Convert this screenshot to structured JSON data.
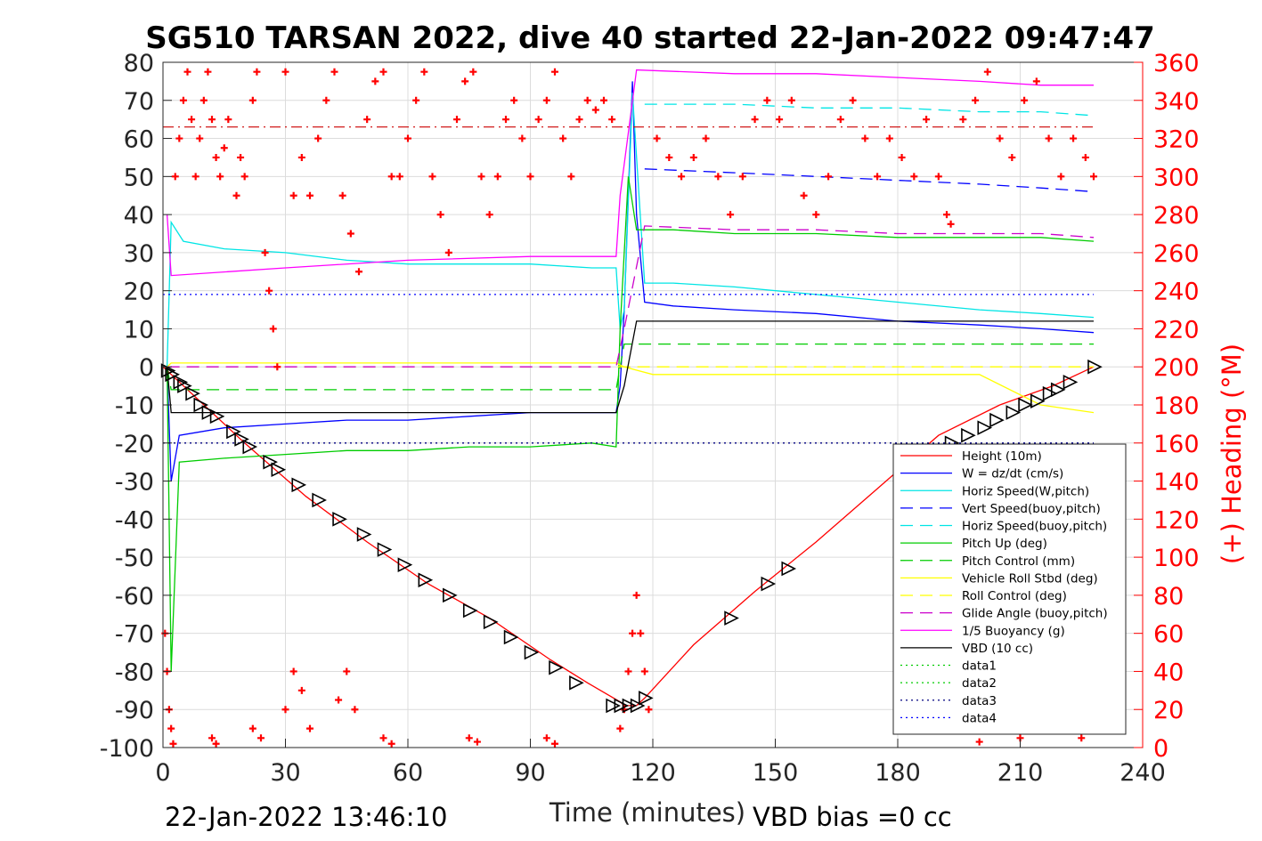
{
  "chart_data": {
    "type": "line",
    "title": "SG510 TARSAN 2022, dive 40 started 22-Jan-2022 09:47:47",
    "xlabel": "Time (minutes)",
    "ylabel": "",
    "y2label": "(+) Heading (°M)",
    "xlim": [
      0,
      240
    ],
    "ylim": [
      -100,
      80
    ],
    "y2lim": [
      0,
      360
    ],
    "xticks": [
      0,
      30,
      60,
      90,
      120,
      150,
      180,
      210,
      240
    ],
    "yticks": [
      -100,
      -90,
      -80,
      -70,
      -60,
      -50,
      -40,
      -30,
      -20,
      -10,
      0,
      10,
      20,
      30,
      40,
      50,
      60,
      70,
      80
    ],
    "y2ticks": [
      0,
      20,
      40,
      60,
      80,
      100,
      120,
      140,
      160,
      180,
      200,
      220,
      240,
      260,
      280,
      300,
      320,
      340,
      360
    ],
    "grid": true,
    "legend_position": "bottom-right",
    "footer_left": "22-Jan-2022 13:46:10",
    "footer_right": "VBD bias =0 cc",
    "series": [
      {
        "name": "Height (10m)",
        "color": "#ff0000",
        "style": "solid",
        "x": [
          0,
          8,
          20,
          35,
          50,
          65,
          80,
          95,
          104,
          112,
          113,
          116,
          118,
          130,
          145,
          160,
          175,
          190,
          205,
          218,
          228
        ],
        "y": [
          0,
          -8,
          -20,
          -34,
          -46,
          -57,
          -66,
          -77,
          -83,
          -88,
          -89,
          -89,
          -87,
          -73,
          -59,
          -46,
          -32,
          -18,
          -10,
          -5,
          0
        ]
      },
      {
        "name": "W = dz/dt (cm/s)",
        "color": "#0000ff",
        "style": "solid",
        "x": [
          1,
          2,
          4,
          15,
          30,
          45,
          60,
          75,
          90,
          105,
          111,
          112,
          113,
          115,
          116,
          118,
          125,
          140,
          160,
          180,
          200,
          215,
          228
        ],
        "y": [
          0,
          -30,
          -18,
          -16,
          -15,
          -14,
          -14,
          -13,
          -12,
          -12,
          -12,
          -5,
          15,
          75,
          40,
          17,
          16,
          15,
          14,
          12,
          11,
          10,
          9
        ]
      },
      {
        "name": "Horiz Speed(W,pitch)",
        "color": "#00e5e5",
        "style": "solid",
        "x": [
          1,
          2,
          5,
          15,
          30,
          45,
          60,
          75,
          90,
          105,
          111,
          112,
          113,
          115,
          118,
          125,
          140,
          160,
          180,
          200,
          215,
          228
        ],
        "y": [
          0,
          38,
          33,
          31,
          30,
          28,
          27,
          27,
          27,
          26,
          26,
          10,
          15,
          72,
          22,
          22,
          21,
          19,
          17,
          15,
          14,
          13
        ]
      },
      {
        "name": "Vert Speed(buoy,pitch)",
        "color": "#0000ff",
        "style": "dashed",
        "x": [
          118,
          140,
          160,
          180,
          200,
          215,
          228
        ],
        "y": [
          52,
          51,
          50,
          49,
          48,
          47,
          46
        ]
      },
      {
        "name": "Horiz Speed(buoy,pitch)",
        "color": "#00e5e5",
        "style": "dashed",
        "x": [
          118,
          140,
          160,
          180,
          200,
          215,
          228
        ],
        "y": [
          69,
          69,
          68,
          68,
          67,
          67,
          66
        ]
      },
      {
        "name": "Pitch Up (deg)",
        "color": "#00cc00",
        "style": "solid",
        "x": [
          1,
          2,
          4,
          15,
          30,
          45,
          60,
          75,
          90,
          105,
          111,
          112,
          114,
          116,
          118,
          125,
          140,
          160,
          180,
          200,
          215,
          228
        ],
        "y": [
          0,
          -80,
          -25,
          -24,
          -23,
          -22,
          -22,
          -21,
          -21,
          -20,
          -21,
          10,
          50,
          36,
          36,
          36,
          35,
          35,
          34,
          34,
          34,
          33
        ]
      },
      {
        "name": "Pitch Control (mm)",
        "color": "#00cc00",
        "style": "dashed",
        "x": [
          1,
          2,
          111,
          112,
          113,
          228
        ],
        "y": [
          0,
          -6,
          -6,
          0,
          6,
          6
        ]
      },
      {
        "name": "Vehicle Roll Stbd (deg)",
        "color": "#ffff00",
        "style": "solid",
        "x": [
          1,
          2,
          10,
          20,
          30,
          40,
          50,
          60,
          70,
          80,
          90,
          100,
          111,
          113,
          120,
          140,
          160,
          180,
          200,
          215,
          228
        ],
        "y": [
          0,
          1,
          1,
          1,
          1,
          1,
          1,
          1,
          1,
          1,
          1,
          1,
          1,
          0,
          -2,
          -2,
          -2,
          -2,
          -2,
          -10,
          -12
        ]
      },
      {
        "name": "Roll Control (deg)",
        "color": "#ffff00",
        "style": "dashed",
        "x": [
          1,
          228
        ],
        "y": [
          0,
          0
        ]
      },
      {
        "name": "Glide Angle (buoy,pitch)",
        "color": "#cc00cc",
        "style": "dashed",
        "x": [
          1,
          111,
          113,
          118,
          140,
          160,
          180,
          200,
          215,
          228
        ],
        "y": [
          0,
          0,
          10,
          37,
          36,
          36,
          35,
          35,
          35,
          34
        ]
      },
      {
        "name": "1/5 Buoyancy (g)",
        "color": "#ff00ff",
        "style": "solid",
        "x": [
          1,
          2,
          30,
          60,
          90,
          111,
          112,
          116,
          140,
          160,
          180,
          200,
          215,
          228
        ],
        "y": [
          40,
          24,
          26,
          28,
          29,
          29,
          45,
          78,
          77,
          77,
          76,
          75,
          74,
          74
        ]
      },
      {
        "name": "VBD (10 cc)",
        "color": "#000000",
        "style": "solid",
        "x": [
          1,
          2,
          111,
          113,
          116,
          228
        ],
        "y": [
          0,
          -12,
          -12,
          -5,
          12,
          12
        ]
      },
      {
        "name": "data1",
        "color": "#00cc00",
        "style": "dotted",
        "x": [],
        "y": []
      },
      {
        "name": "data2",
        "color": "#00cc00",
        "style": "dotted",
        "x": [],
        "y": []
      },
      {
        "name": "data3",
        "color": "#000080",
        "style": "dotted",
        "x": [
          0,
          228
        ],
        "y": [
          -20,
          -20
        ]
      },
      {
        "name": "data4",
        "color": "#0000ff",
        "style": "dotted",
        "x": [
          0,
          228
        ],
        "y": [
          19,
          19
        ]
      }
    ],
    "extra_lines": [
      {
        "color": "#cc0000",
        "style": "dashdot",
        "x": [
          0,
          228
        ],
        "y": [
          63,
          63
        ]
      }
    ],
    "heading_series": {
      "color": "#ff0000",
      "marker": "+",
      "axis": "right",
      "points": [
        [
          0.5,
          60
        ],
        [
          1,
          40
        ],
        [
          1.5,
          20
        ],
        [
          2,
          10
        ],
        [
          2.5,
          2
        ],
        [
          3,
          300
        ],
        [
          4,
          320
        ],
        [
          5,
          340
        ],
        [
          6,
          355
        ],
        [
          7,
          330
        ],
        [
          8,
          300
        ],
        [
          9,
          320
        ],
        [
          10,
          340
        ],
        [
          11,
          355
        ],
        [
          12,
          330
        ],
        [
          13,
          310
        ],
        [
          14,
          300
        ],
        [
          15,
          315
        ],
        [
          16,
          330
        ],
        [
          18,
          290
        ],
        [
          19,
          310
        ],
        [
          20,
          300
        ],
        [
          22,
          340
        ],
        [
          23,
          355
        ],
        [
          25,
          260
        ],
        [
          26,
          240
        ],
        [
          27,
          220
        ],
        [
          28,
          200
        ],
        [
          30,
          355
        ],
        [
          32,
          290
        ],
        [
          34,
          310
        ],
        [
          36,
          290
        ],
        [
          38,
          320
        ],
        [
          40,
          340
        ],
        [
          42,
          355
        ],
        [
          44,
          290
        ],
        [
          46,
          270
        ],
        [
          48,
          250
        ],
        [
          50,
          330
        ],
        [
          52,
          350
        ],
        [
          54,
          355
        ],
        [
          56,
          300
        ],
        [
          58,
          300
        ],
        [
          60,
          320
        ],
        [
          62,
          340
        ],
        [
          64,
          355
        ],
        [
          66,
          300
        ],
        [
          68,
          280
        ],
        [
          70,
          260
        ],
        [
          72,
          330
        ],
        [
          74,
          350
        ],
        [
          76,
          355
        ],
        [
          78,
          300
        ],
        [
          80,
          280
        ],
        [
          82,
          300
        ],
        [
          84,
          330
        ],
        [
          86,
          340
        ],
        [
          88,
          320
        ],
        [
          90,
          300
        ],
        [
          92,
          330
        ],
        [
          94,
          340
        ],
        [
          96,
          355
        ],
        [
          98,
          320
        ],
        [
          100,
          300
        ],
        [
          102,
          330
        ],
        [
          104,
          340
        ],
        [
          106,
          335
        ],
        [
          108,
          340
        ],
        [
          110,
          330
        ],
        [
          112,
          10
        ],
        [
          113,
          20
        ],
        [
          114,
          40
        ],
        [
          115,
          60
        ],
        [
          116,
          80
        ],
        [
          117,
          60
        ],
        [
          118,
          40
        ],
        [
          119,
          20
        ],
        [
          121,
          320
        ],
        [
          124,
          310
        ],
        [
          127,
          300
        ],
        [
          130,
          310
        ],
        [
          133,
          320
        ],
        [
          136,
          300
        ],
        [
          139,
          280
        ],
        [
          142,
          300
        ],
        [
          145,
          330
        ],
        [
          148,
          340
        ],
        [
          151,
          330
        ],
        [
          154,
          340
        ],
        [
          157,
          290
        ],
        [
          160,
          280
        ],
        [
          163,
          300
        ],
        [
          166,
          330
        ],
        [
          169,
          340
        ],
        [
          172,
          320
        ],
        [
          175,
          300
        ],
        [
          178,
          320
        ],
        [
          181,
          310
        ],
        [
          184,
          300
        ],
        [
          187,
          330
        ],
        [
          190,
          300
        ],
        [
          192,
          280
        ],
        [
          193,
          275
        ],
        [
          196,
          330
        ],
        [
          199,
          340
        ],
        [
          202,
          355
        ],
        [
          205,
          320
        ],
        [
          208,
          310
        ],
        [
          211,
          340
        ],
        [
          214,
          350
        ],
        [
          217,
          320
        ],
        [
          220,
          300
        ],
        [
          223,
          320
        ],
        [
          226,
          310
        ],
        [
          228,
          300
        ],
        [
          12,
          5
        ],
        [
          13,
          2
        ],
        [
          22,
          10
        ],
        [
          24,
          5
        ],
        [
          30,
          20
        ],
        [
          32,
          40
        ],
        [
          34,
          30
        ],
        [
          36,
          10
        ],
        [
          43,
          25
        ],
        [
          45,
          40
        ],
        [
          47,
          20
        ],
        [
          54,
          5
        ],
        [
          56,
          2
        ],
        [
          75,
          5
        ],
        [
          77,
          3
        ],
        [
          94,
          5
        ],
        [
          96,
          2
        ],
        [
          200,
          3
        ],
        [
          210,
          5
        ],
        [
          225,
          5
        ]
      ]
    },
    "triangle_markers": {
      "color": "#000000",
      "points": [
        [
          1,
          -1
        ],
        [
          2,
          -2
        ],
        [
          4,
          -4
        ],
        [
          5,
          -5
        ],
        [
          7,
          -7
        ],
        [
          9,
          -10
        ],
        [
          11,
          -12
        ],
        [
          13,
          -13
        ],
        [
          17,
          -17
        ],
        [
          19,
          -19
        ],
        [
          21,
          -21
        ],
        [
          26,
          -25
        ],
        [
          28,
          -27
        ],
        [
          33,
          -31
        ],
        [
          38,
          -35
        ],
        [
          43,
          -40
        ],
        [
          49,
          -44
        ],
        [
          54,
          -48
        ],
        [
          59,
          -52
        ],
        [
          64,
          -56
        ],
        [
          70,
          -60
        ],
        [
          75,
          -64
        ],
        [
          80,
          -67
        ],
        [
          85,
          -71
        ],
        [
          90,
          -75
        ],
        [
          96,
          -79
        ],
        [
          101,
          -83
        ],
        [
          110,
          -89
        ],
        [
          112,
          -89
        ],
        [
          114,
          -89
        ],
        [
          116,
          -89
        ],
        [
          118,
          -87
        ],
        [
          139,
          -66
        ],
        [
          148,
          -57
        ],
        [
          153,
          -53
        ],
        [
          193,
          -20
        ],
        [
          197,
          -18
        ],
        [
          201,
          -16
        ],
        [
          204,
          -14
        ],
        [
          208,
          -12
        ],
        [
          211,
          -10
        ],
        [
          214,
          -9
        ],
        [
          217,
          -7
        ],
        [
          219,
          -6
        ],
        [
          222,
          -4
        ],
        [
          228,
          0
        ]
      ]
    }
  }
}
